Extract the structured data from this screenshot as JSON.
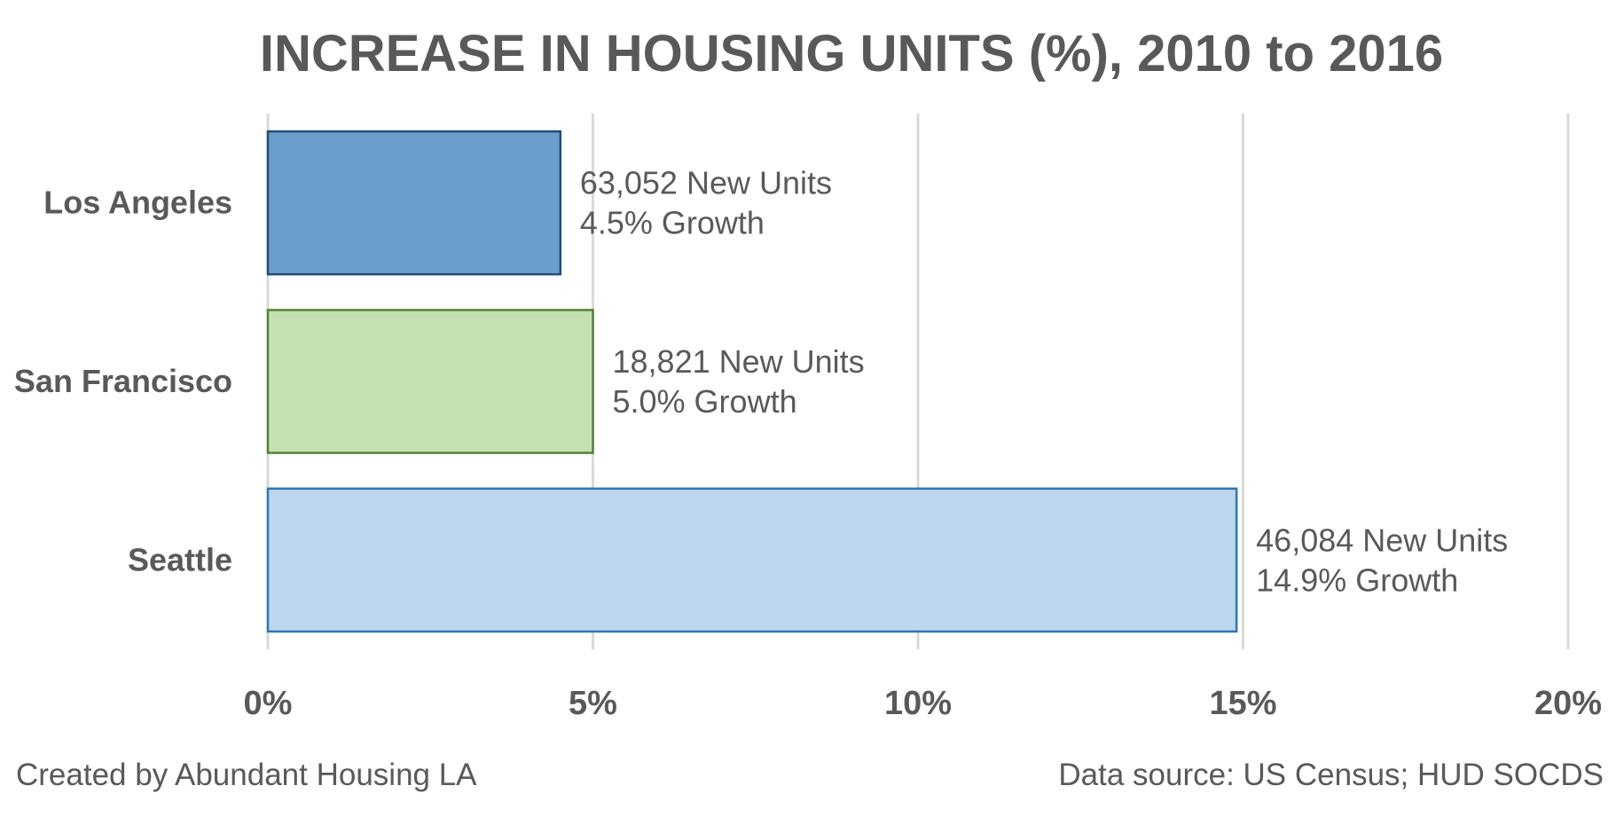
{
  "chart_data": {
    "type": "bar",
    "orientation": "horizontal",
    "title": "INCREASE IN HOUSING UNITS (%), 2010 to 2016",
    "categories": [
      "Los Angeles",
      "San Francisco",
      "Seattle"
    ],
    "values": [
      4.5,
      5.0,
      14.9
    ],
    "data_labels": [
      [
        "63,052 New Units",
        "4.5% Growth"
      ],
      [
        "18,821 New Units",
        "5.0% Growth"
      ],
      [
        "46,084 New Units",
        "14.9% Growth"
      ]
    ],
    "xlim": [
      0,
      20
    ],
    "x_ticks": [
      0,
      5,
      10,
      15,
      20
    ],
    "x_tick_labels": [
      "0%",
      "5%",
      "10%",
      "15%",
      "20%"
    ],
    "grid": "vertical",
    "legend": "none",
    "colors": {
      "fills": [
        "#6b9ecd",
        "#c5e0b1",
        "#bcd6ee"
      ],
      "strokes": [
        "#1f4e79",
        "#548235",
        "#2e75b6"
      ]
    }
  },
  "footer": {
    "credit": "Created by Abundant Housing LA",
    "source": "Data source: US Census; HUD SOCDS"
  }
}
